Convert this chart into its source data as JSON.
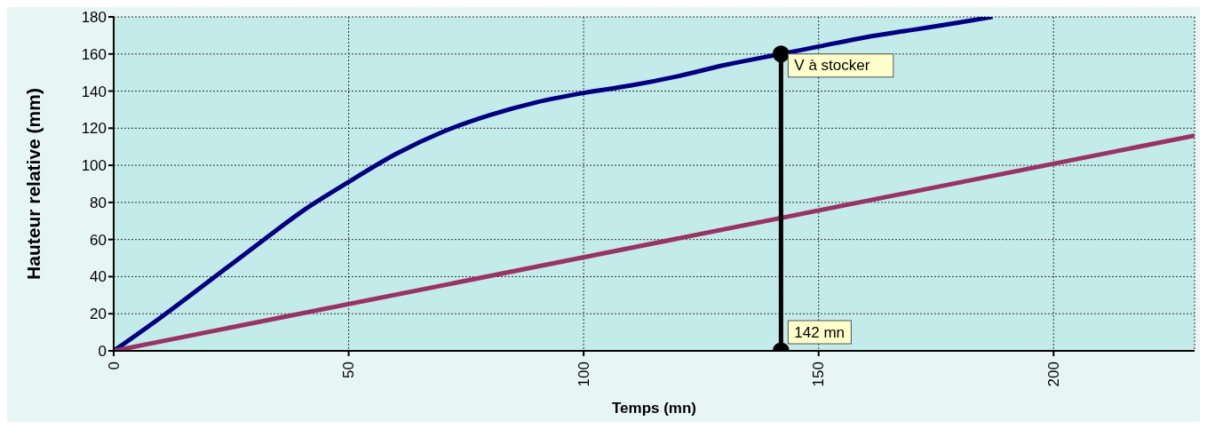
{
  "chart_data": {
    "type": "line",
    "xlabel": "Temps (mn)",
    "ylabel": "Hauteur relative (mm)",
    "xlim": [
      0,
      230
    ],
    "xticks": [
      0,
      50,
      100,
      150,
      200
    ],
    "ylim": [
      0,
      180
    ],
    "yticks": [
      0,
      20,
      40,
      60,
      80,
      100,
      120,
      140,
      160,
      180
    ],
    "grid": true,
    "legend": false,
    "line_style": "solid",
    "series": [
      {
        "color": "#000080",
        "marker": "none",
        "x": [
          0,
          10,
          20,
          32,
          40,
          50,
          60,
          70,
          80,
          90,
          100,
          110,
          120,
          130,
          142,
          150,
          160,
          170,
          180,
          187
        ],
        "values": [
          0,
          18,
          37,
          60,
          75,
          91,
          106,
          118,
          127,
          134,
          139,
          143,
          148,
          154,
          160,
          164,
          169,
          173,
          177,
          180
        ]
      },
      {
        "color": "#993366",
        "marker": "none",
        "x": [
          0,
          230
        ],
        "values": [
          0,
          116
        ]
      },
      {
        "color": "#000000",
        "marker": "circle",
        "x": [
          142,
          142
        ],
        "values": [
          0,
          160
        ]
      }
    ],
    "annotations": [
      {
        "text": "V à stocker",
        "x": 142,
        "y": 160
      },
      {
        "text": "142 mn",
        "x": 142,
        "y": 0
      }
    ]
  }
}
